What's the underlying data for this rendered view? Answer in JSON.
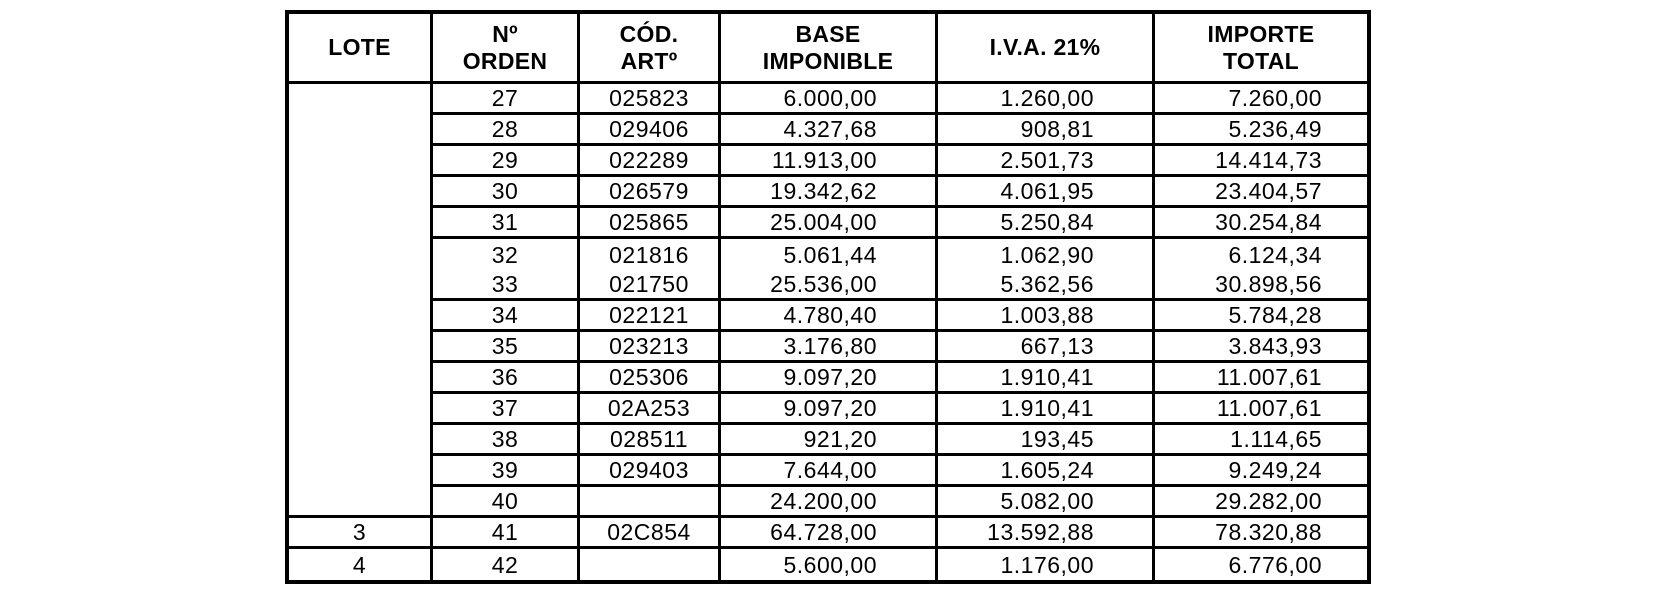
{
  "table": {
    "headers": [
      {
        "id": "lote",
        "label": "LOTE"
      },
      {
        "id": "orden",
        "label": "Nº\nORDEN"
      },
      {
        "id": "cod",
        "label": "CÓD.\nARTº"
      },
      {
        "id": "base",
        "label": "BASE\nIMPONIBLE"
      },
      {
        "id": "iva",
        "label": "I.V.A. 21%"
      },
      {
        "id": "total",
        "label": "IMPORTE\nTOTAL"
      }
    ],
    "lote_groups": [
      {
        "label": "",
        "rows": 14
      },
      {
        "label": "3",
        "rows": 1
      },
      {
        "label": "4",
        "rows": 1
      }
    ],
    "rows": [
      {
        "orden": "27",
        "cod": "025823",
        "base": "6.000,00",
        "iva": "1.260,00",
        "total": "7.260,00"
      },
      {
        "orden": "28",
        "cod": "029406",
        "base": "4.327,68",
        "iva": "908,81",
        "total": "5.236,49"
      },
      {
        "orden": "29",
        "cod": "022289",
        "base": "11.913,00",
        "iva": "2.501,73",
        "total": "14.414,73"
      },
      {
        "orden": "30",
        "cod": "026579",
        "base": "19.342,62",
        "iva": "4.061,95",
        "total": "23.404,57"
      },
      {
        "orden": "31",
        "cod": "025865",
        "base": "25.004,00",
        "iva": "5.250,84",
        "total": "30.254,84"
      },
      {
        "orden": "32",
        "cod": "021816",
        "base": "5.061,44",
        "iva": "1.062,90",
        "total": "6.124,34",
        "merge_below": true
      },
      {
        "orden": "33",
        "cod": "021750",
        "base": "25.536,00",
        "iva": "5.362,56",
        "total": "30.898,56"
      },
      {
        "orden": "34",
        "cod": "022121",
        "base": "4.780,40",
        "iva": "1.003,88",
        "total": "5.784,28"
      },
      {
        "orden": "35",
        "cod": "023213",
        "base": "3.176,80",
        "iva": "667,13",
        "total": "3.843,93"
      },
      {
        "orden": "36",
        "cod": "025306",
        "base": "9.097,20",
        "iva": "1.910,41",
        "total": "11.007,61"
      },
      {
        "orden": "37",
        "cod": "02A253",
        "base": "9.097,20",
        "iva": "1.910,41",
        "total": "11.007,61"
      },
      {
        "orden": "38",
        "cod": "028511",
        "base": "921,20",
        "iva": "193,45",
        "total": "1.114,65"
      },
      {
        "orden": "39",
        "cod": "029403",
        "base": "7.644,00",
        "iva": "1.605,24",
        "total": "9.249,24"
      },
      {
        "orden": "40",
        "cod": "",
        "base": "24.200,00",
        "iva": "5.082,00",
        "total": "29.282,00"
      },
      {
        "orden": "41",
        "cod": "02C854",
        "base": "64.728,00",
        "iva": "13.592,88",
        "total": "78.320,88"
      },
      {
        "orden": "42",
        "cod": "",
        "base": "5.600,00",
        "iva": "1.176,00",
        "total": "6.776,00"
      }
    ],
    "colors": {
      "border": "#000000",
      "text": "#000000",
      "background": "#ffffff"
    }
  }
}
